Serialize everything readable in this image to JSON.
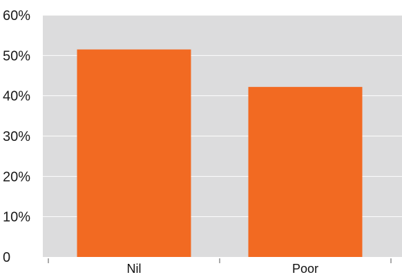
{
  "chart_data": {
    "type": "bar",
    "title": "",
    "xlabel": "",
    "ylabel": "",
    "categories": [
      "Nil",
      "Poor"
    ],
    "series": [
      {
        "values": [
          51.5,
          42.2
        ]
      }
    ],
    "ylim": [
      0,
      60
    ],
    "yticks": [
      0,
      10,
      20,
      30,
      40,
      50,
      60
    ],
    "ytick_labels": [
      "0",
      "10%",
      "20%",
      "30%",
      "40%",
      "50%",
      "60%"
    ],
    "grid": true,
    "legend": "none",
    "colors": {
      "bar": "#f26a22",
      "plot_background": "#dcdcdd",
      "gridline": "#ffffff",
      "axis_tick": "#555555"
    }
  }
}
